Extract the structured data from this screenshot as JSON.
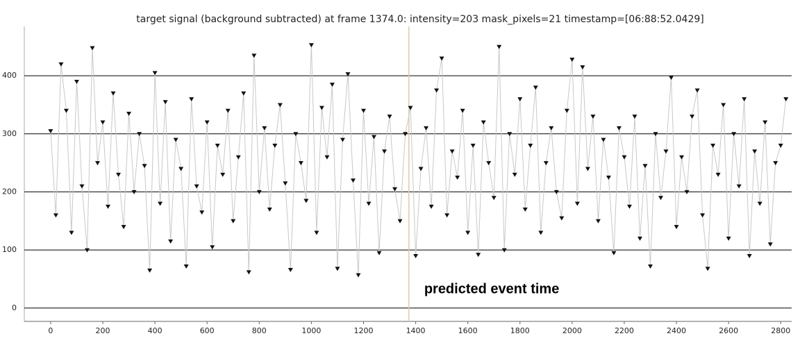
{
  "chart_data": {
    "type": "scatter",
    "title": "target signal (background subtracted) at frame 1374.0: intensity=203 mask_pixels=21 timestamp=[06:88:52.0429]",
    "annotation": "predicted event time",
    "event_frame": 1374,
    "event_color": "#d8cfa8",
    "line_color": "#c8c8c8",
    "grid": true,
    "x": [
      0,
      20,
      40,
      60,
      80,
      100,
      120,
      140,
      160,
      180,
      200,
      220,
      240,
      260,
      280,
      300,
      320,
      340,
      360,
      380,
      400,
      420,
      440,
      460,
      480,
      500,
      520,
      540,
      560,
      580,
      600,
      620,
      640,
      660,
      680,
      700,
      720,
      740,
      760,
      780,
      800,
      820,
      840,
      860,
      880,
      900,
      920,
      940,
      960,
      980,
      1000,
      1020,
      1040,
      1060,
      1080,
      1100,
      1120,
      1140,
      1160,
      1180,
      1200,
      1220,
      1240,
      1260,
      1280,
      1300,
      1320,
      1340,
      1360,
      1380,
      1400,
      1420,
      1440,
      1460,
      1480,
      1500,
      1520,
      1540,
      1560,
      1580,
      1600,
      1620,
      1640,
      1660,
      1680,
      1700,
      1720,
      1740,
      1760,
      1780,
      1800,
      1820,
      1840,
      1860,
      1880,
      1900,
      1920,
      1940,
      1960,
      1980,
      2000,
      2020,
      2040,
      2060,
      2080,
      2100,
      2120,
      2140,
      2160,
      2180,
      2200,
      2220,
      2240,
      2260,
      2280,
      2300,
      2320,
      2340,
      2360,
      2380,
      2400,
      2420,
      2440,
      2460,
      2480,
      2500,
      2520,
      2540,
      2560,
      2580,
      2600,
      2620,
      2640,
      2660,
      2680,
      2700,
      2720,
      2740,
      2760,
      2780,
      2800,
      2820
    ],
    "series": [
      {
        "color": "#111111",
        "values": [
          305,
          160,
          420,
          340,
          130,
          390,
          210,
          100,
          448,
          250,
          320,
          175,
          370,
          230,
          140,
          335,
          200,
          300,
          245,
          65,
          405,
          180,
          355,
          115,
          290,
          240,
          72,
          360,
          210,
          165,
          320,
          105,
          280,
          230,
          340,
          150,
          260,
          370,
          62,
          435,
          200,
          310,
          170,
          280,
          350,
          215,
          66,
          300,
          250,
          185,
          453,
          130,
          345,
          260,
          385,
          68,
          290,
          403,
          220,
          57,
          340,
          180,
          295,
          95,
          270,
          330,
          205,
          150,
          300,
          345,
          90,
          240,
          310,
          175,
          375,
          430,
          160,
          270,
          225,
          340,
          130,
          280,
          92,
          320,
          250,
          190,
          450,
          100,
          300,
          230,
          360,
          170,
          280,
          380,
          130,
          250,
          310,
          200,
          155,
          340,
          428,
          180,
          415,
          240,
          330,
          150,
          290,
          225,
          95,
          310,
          260,
          175,
          330,
          120,
          245,
          72,
          300,
          190,
          270,
          397,
          140,
          260,
          200,
          330,
          375,
          160,
          68,
          280,
          230,
          350,
          120,
          300,
          210,
          360,
          90,
          270,
          180,
          320,
          110,
          250,
          280,
          360
        ]
      }
    ],
    "xlim": [
      -101,
      2842
    ],
    "ylim": [
      -23,
      485
    ],
    "xticks": [
      0,
      200,
      400,
      600,
      800,
      1000,
      1200,
      1400,
      1600,
      1800,
      2000,
      2200,
      2400,
      2600,
      2800
    ],
    "yticks": [
      0,
      100,
      200,
      300,
      400
    ]
  }
}
